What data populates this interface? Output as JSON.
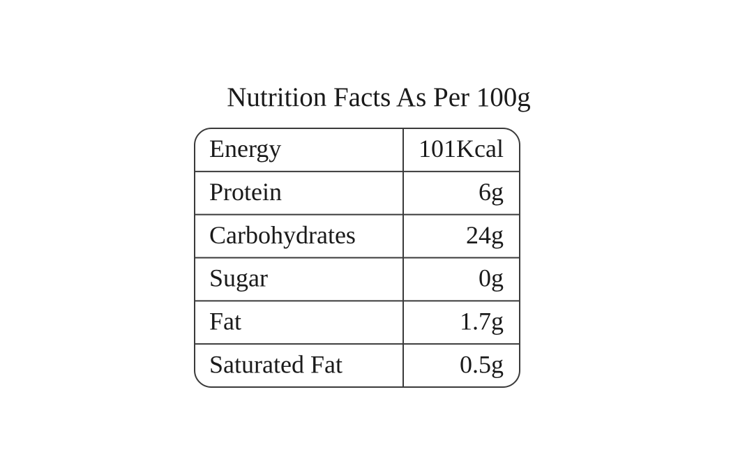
{
  "title": "Nutrition Facts As Per 100g",
  "table": {
    "rows": [
      [
        "Energy",
        "101Kcal"
      ],
      [
        "Protein",
        "6g"
      ],
      [
        "Carbohydrates",
        "24g"
      ],
      [
        "Sugar",
        "0g"
      ],
      [
        "Fat",
        "1.7g"
      ],
      [
        "Saturated Fat",
        "0.5g"
      ]
    ]
  }
}
